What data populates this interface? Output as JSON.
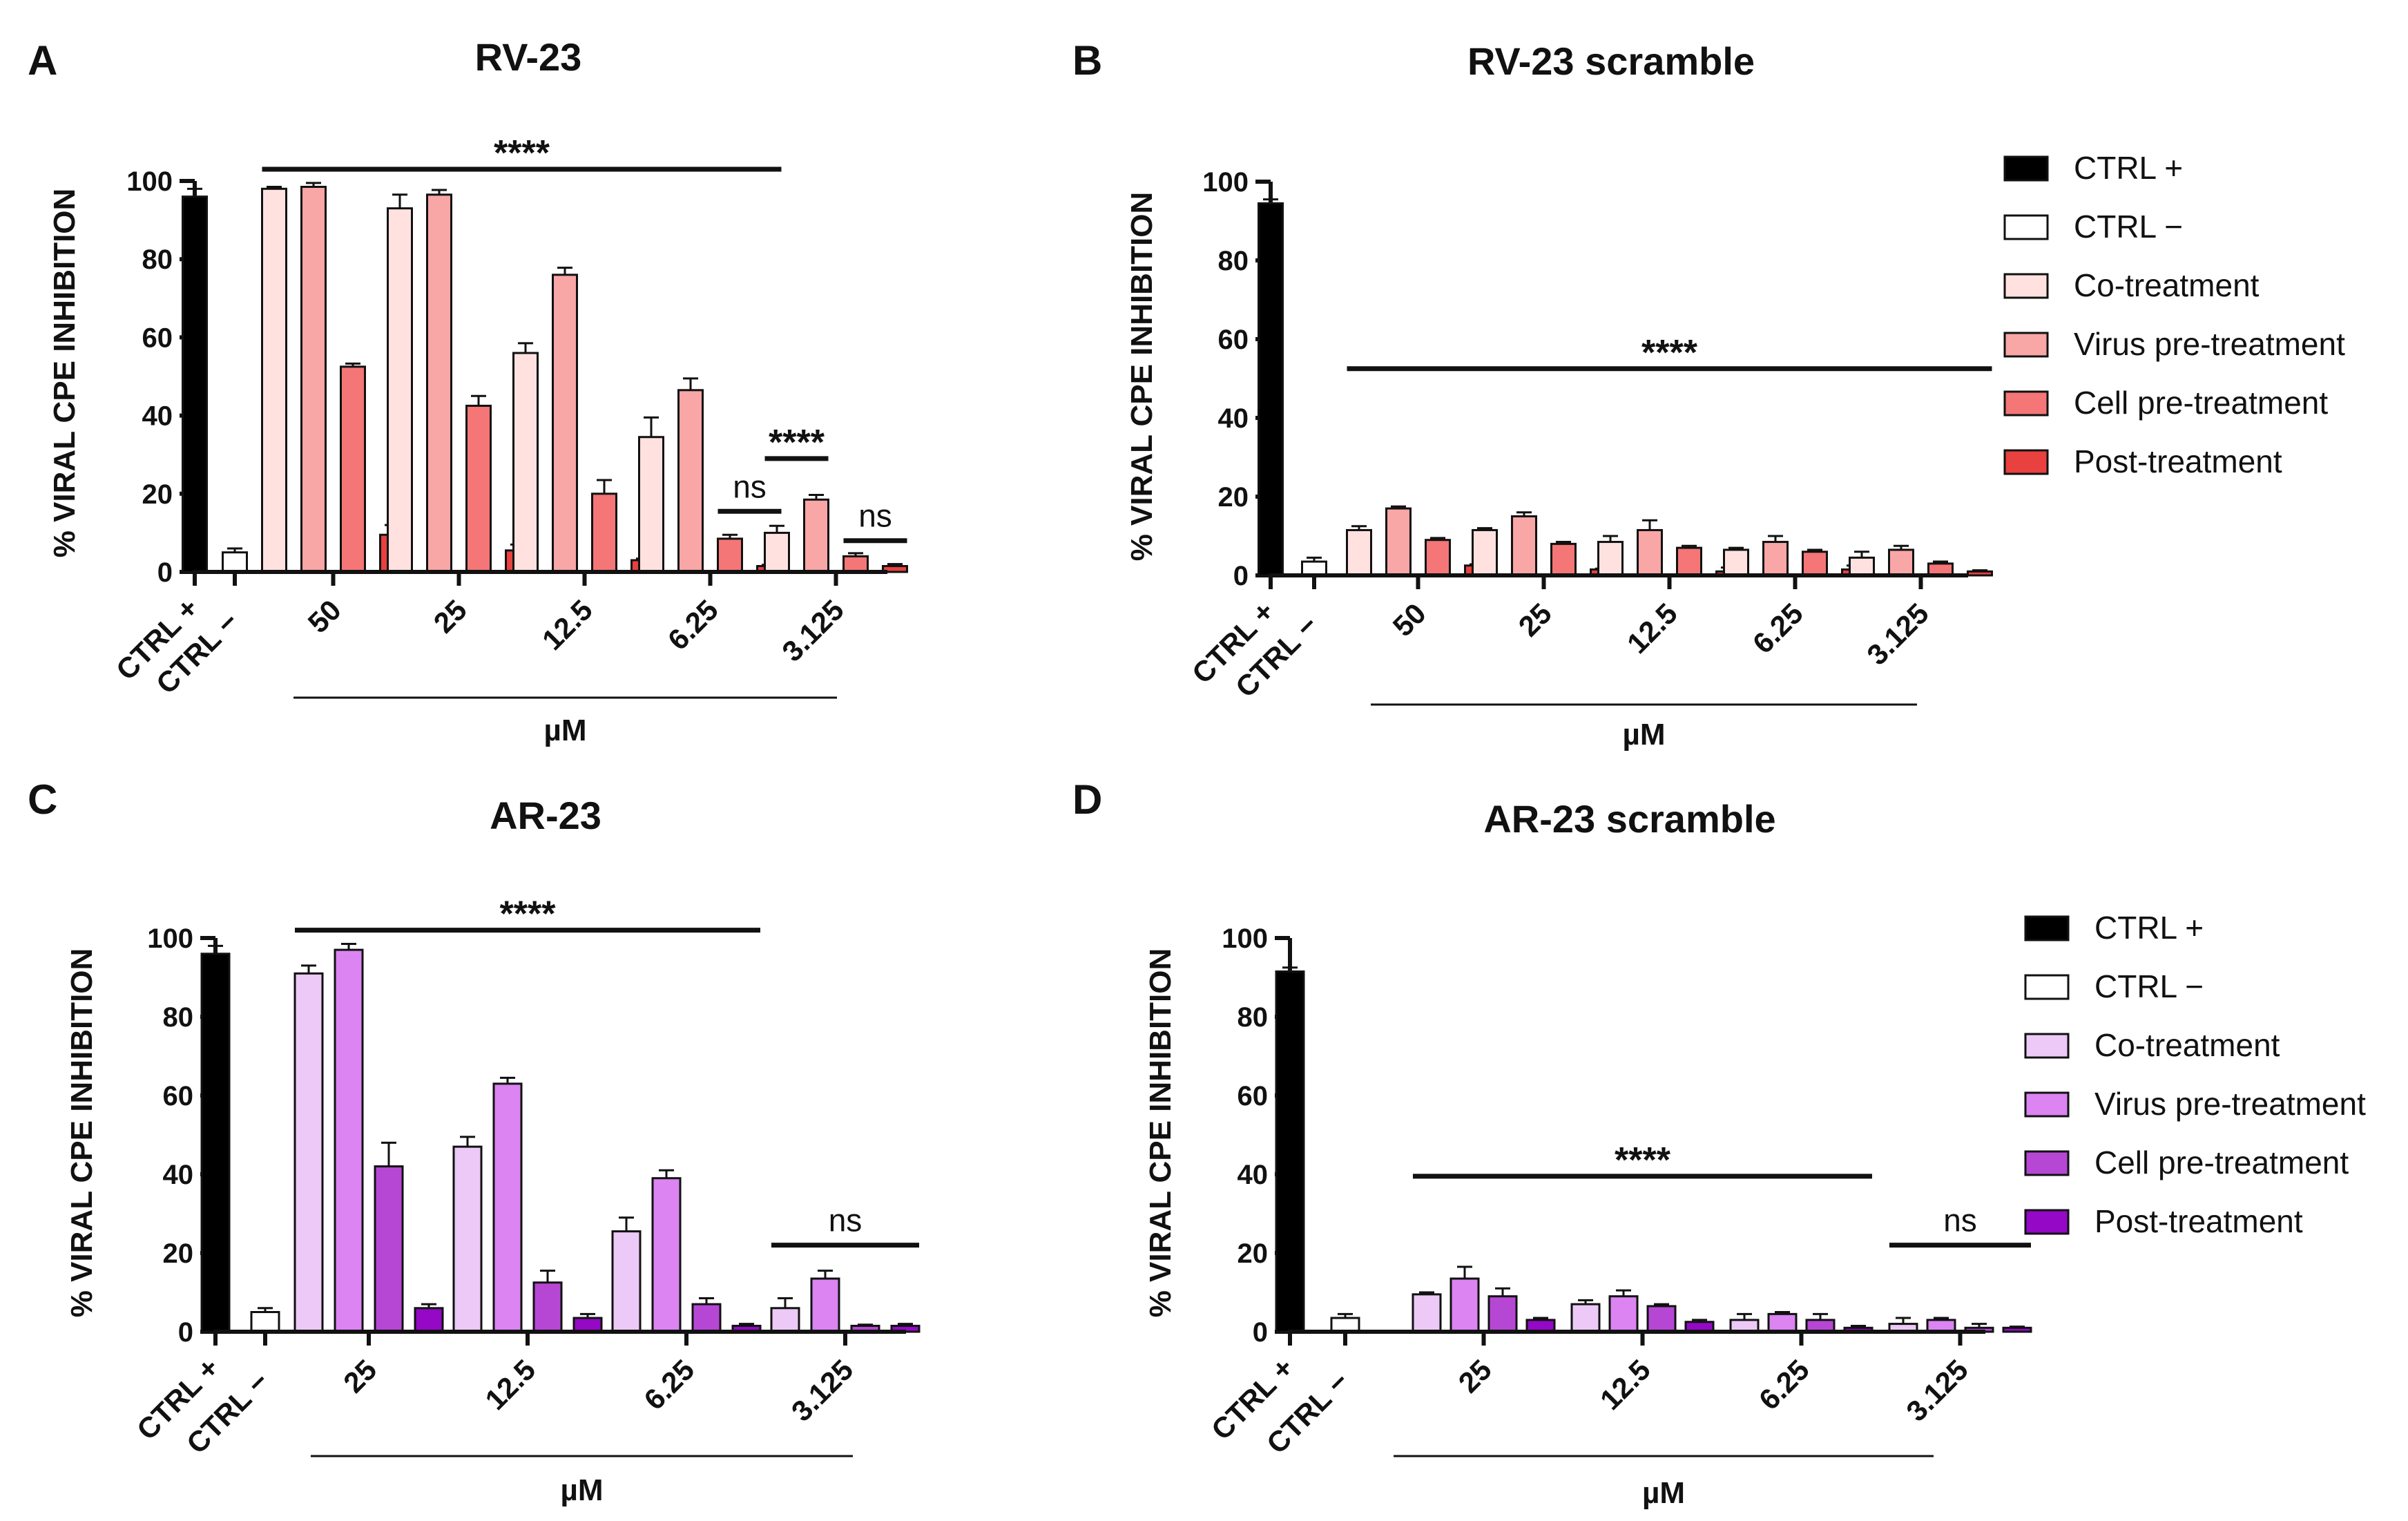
{
  "figure": {
    "legend_labels": [
      "CTRL +",
      "CTRL −",
      "Co-treatment",
      "Virus pre-treatment",
      "Cell pre-treatment",
      "Post-treatment"
    ],
    "palettes": {
      "red": [
        "#ffe2e0",
        "#f9a6a6",
        "#f47676",
        "#e8413f"
      ],
      "purple": [
        "#ecc9f7",
        "#db84f2",
        "#b647d4",
        "#9408c6"
      ],
      "ctrl_pos": "#000000",
      "ctrl_neg": "#ffffff"
    }
  },
  "chart_data": [
    {
      "panel": "A",
      "title": "RV-23",
      "type": "bar",
      "palette": "red",
      "ylabel": "% VIRAL CPE INHIBITION",
      "xlabel": "µM",
      "ylim": [
        0,
        100
      ],
      "yticks": [
        0,
        20,
        40,
        60,
        80,
        100
      ],
      "controls": [
        {
          "name": "CTRL +",
          "value": 96,
          "error": 2
        },
        {
          "name": "CTRL −",
          "value": 5,
          "error": 1
        }
      ],
      "series_names": [
        "Co-treatment",
        "Virus pre-treatment",
        "Cell pre-treatment",
        "Post-treatment"
      ],
      "categories": [
        "50",
        "25",
        "12.5",
        "6.25",
        "3.125"
      ],
      "values": [
        [
          98,
          98.5,
          52.5,
          9.5
        ],
        [
          93,
          96.5,
          42.5,
          5.5
        ],
        [
          56,
          76,
          20,
          3
        ],
        [
          34.5,
          46.5,
          8.5,
          1.5
        ],
        [
          10,
          18.5,
          4,
          1.5
        ]
      ],
      "errors": [
        [
          0.5,
          1,
          0.8,
          2.5
        ],
        [
          3.5,
          1.2,
          2.5,
          1.5
        ],
        [
          2.5,
          1.8,
          3.5,
          0.4
        ],
        [
          5,
          3,
          1,
          0.3
        ],
        [
          1.8,
          1.2,
          0.8,
          0.5
        ]
      ],
      "annotations": [
        {
          "text": "****",
          "from": [
            0,
            0
          ],
          "to": [
            3,
            3
          ],
          "y": 103
        },
        {
          "text": "ns",
          "from": [
            3,
            2
          ],
          "to": [
            3,
            3
          ],
          "y": 15.5
        },
        {
          "text": "****",
          "from": [
            4,
            0
          ],
          "to": [
            4,
            1
          ],
          "y": 29
        },
        {
          "text": "ns",
          "from": [
            4,
            2
          ],
          "to": [
            4,
            3
          ],
          "y": 8
        }
      ]
    },
    {
      "panel": "B",
      "title": "RV-23 scramble",
      "type": "bar",
      "palette": "red",
      "ylabel": "% VIRAL CPE INHIBITION",
      "xlabel": "µM",
      "ylim": [
        0,
        100
      ],
      "yticks": [
        0,
        20,
        40,
        60,
        80,
        100
      ],
      "controls": [
        {
          "name": "CTRL +",
          "value": 94.5,
          "error": 1
        },
        {
          "name": "CTRL −",
          "value": 3.5,
          "error": 1
        }
      ],
      "series_names": [
        "Co-treatment",
        "Virus pre-treatment",
        "Cell pre-treatment",
        "Post-treatment"
      ],
      "categories": [
        "50",
        "25",
        "12.5",
        "6.25",
        "3.125"
      ],
      "values": [
        [
          11.5,
          17,
          9,
          2.5
        ],
        [
          11.5,
          15,
          8,
          1.5
        ],
        [
          8.5,
          11.5,
          7,
          1
        ],
        [
          6.5,
          8.5,
          6,
          1.5
        ],
        [
          4.5,
          6.5,
          3,
          1
        ]
      ],
      "errors": [
        [
          1,
          0.5,
          0.5,
          0.3
        ],
        [
          0.5,
          1,
          0.5,
          0.2
        ],
        [
          1.5,
          2.5,
          0.5,
          1
        ],
        [
          0.5,
          1.5,
          0.5,
          1
        ],
        [
          1.5,
          1,
          0.5,
          0.3
        ]
      ],
      "annotations": [
        {
          "text": "****",
          "from": [
            0,
            0
          ],
          "to": [
            4,
            3
          ],
          "y": 52.5
        }
      ]
    },
    {
      "panel": "C",
      "title": "AR-23",
      "type": "bar",
      "palette": "purple",
      "ylabel": "% VIRAL CPE INHIBITION",
      "xlabel": "µM",
      "ylim": [
        0,
        100
      ],
      "yticks": [
        0,
        20,
        40,
        60,
        80,
        100
      ],
      "controls": [
        {
          "name": "CTRL +",
          "value": 96,
          "error": 2
        },
        {
          "name": "CTRL −",
          "value": 5,
          "error": 1
        }
      ],
      "series_names": [
        "Co-treatment",
        "Virus pre-treatment",
        "Cell pre-treatment",
        "Post-treatment"
      ],
      "categories": [
        "25",
        "12.5",
        "6.25",
        "3.125"
      ],
      "values": [
        [
          91,
          97,
          42,
          6
        ],
        [
          47,
          63,
          12.5,
          3.5
        ],
        [
          25.5,
          39,
          7,
          1.5
        ],
        [
          6,
          13.5,
          1.5,
          1.5
        ]
      ],
      "errors": [
        [
          2,
          1.5,
          6,
          1
        ],
        [
          2.5,
          1.5,
          3,
          1
        ],
        [
          3.5,
          2,
          1.5,
          0.5
        ],
        [
          2.5,
          2,
          0.3,
          0.5
        ]
      ],
      "annotations": [
        {
          "text": "****",
          "from": [
            0,
            0
          ],
          "to": [
            2,
            3
          ],
          "y": 102
        },
        {
          "text": "ns",
          "from": [
            3,
            0
          ],
          "to": [
            3,
            3
          ],
          "y": 22
        }
      ]
    },
    {
      "panel": "D",
      "title": "AR-23 scramble",
      "type": "bar",
      "palette": "purple",
      "ylabel": "% VIRAL CPE INHIBITION",
      "xlabel": "µM",
      "ylim": [
        0,
        100
      ],
      "yticks": [
        0,
        20,
        40,
        60,
        80,
        100
      ],
      "controls": [
        {
          "name": "CTRL +",
          "value": 91.5,
          "error": 1
        },
        {
          "name": "CTRL −",
          "value": 3.5,
          "error": 1
        }
      ],
      "series_names": [
        "Co-treatment",
        "Virus pre-treatment",
        "Cell pre-treatment",
        "Post-treatment"
      ],
      "categories": [
        "25",
        "12.5",
        "6.25",
        "3.125"
      ],
      "values": [
        [
          9.5,
          13.5,
          9,
          3
        ],
        [
          7,
          9,
          6.5,
          2.5
        ],
        [
          3,
          4.5,
          3,
          1
        ],
        [
          2,
          3,
          1,
          1
        ]
      ],
      "errors": [
        [
          0.5,
          3,
          2,
          0.5
        ],
        [
          1,
          1.5,
          0.5,
          0.5
        ],
        [
          1.5,
          0.5,
          1.5,
          0.5
        ],
        [
          1.5,
          0.5,
          1,
          0.3
        ]
      ],
      "annotations": [
        {
          "text": "****",
          "from": [
            0,
            0
          ],
          "to": [
            2,
            3
          ],
          "y": 39.5
        },
        {
          "text": "ns",
          "from": [
            3,
            0
          ],
          "to": [
            3,
            3
          ],
          "y": 22
        }
      ]
    }
  ]
}
